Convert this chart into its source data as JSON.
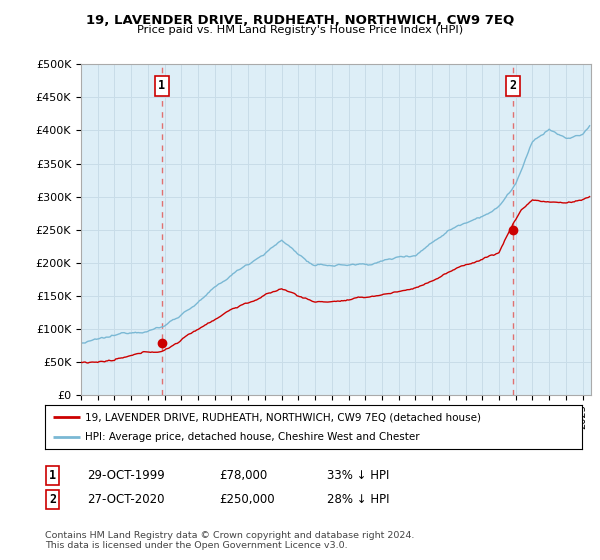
{
  "title": "19, LAVENDER DRIVE, RUDHEATH, NORTHWICH, CW9 7EQ",
  "subtitle": "Price paid vs. HM Land Registry's House Price Index (HPI)",
  "ylabel_ticks": [
    "£0",
    "£50K",
    "£100K",
    "£150K",
    "£200K",
    "£250K",
    "£300K",
    "£350K",
    "£400K",
    "£450K",
    "£500K"
  ],
  "ytick_values": [
    0,
    50000,
    100000,
    150000,
    200000,
    250000,
    300000,
    350000,
    400000,
    450000,
    500000
  ],
  "ylim": [
    0,
    500000
  ],
  "xlim_start": 1995.0,
  "xlim_end": 2025.5,
  "hpi_color": "#7ab8d4",
  "price_color": "#cc0000",
  "marker_color": "#cc0000",
  "vline_color": "#e07070",
  "point1_x": 1999.83,
  "point1_y": 78000,
  "point2_x": 2020.83,
  "point2_y": 250000,
  "legend_line1": "19, LAVENDER DRIVE, RUDHEATH, NORTHWICH, CW9 7EQ (detached house)",
  "legend_line2": "HPI: Average price, detached house, Cheshire West and Chester",
  "footnote": "Contains HM Land Registry data © Crown copyright and database right 2024.\nThis data is licensed under the Open Government Licence v3.0.",
  "background_color": "#ffffff",
  "chart_bg": "#ddeef7",
  "grid_color": "#c8dce8"
}
